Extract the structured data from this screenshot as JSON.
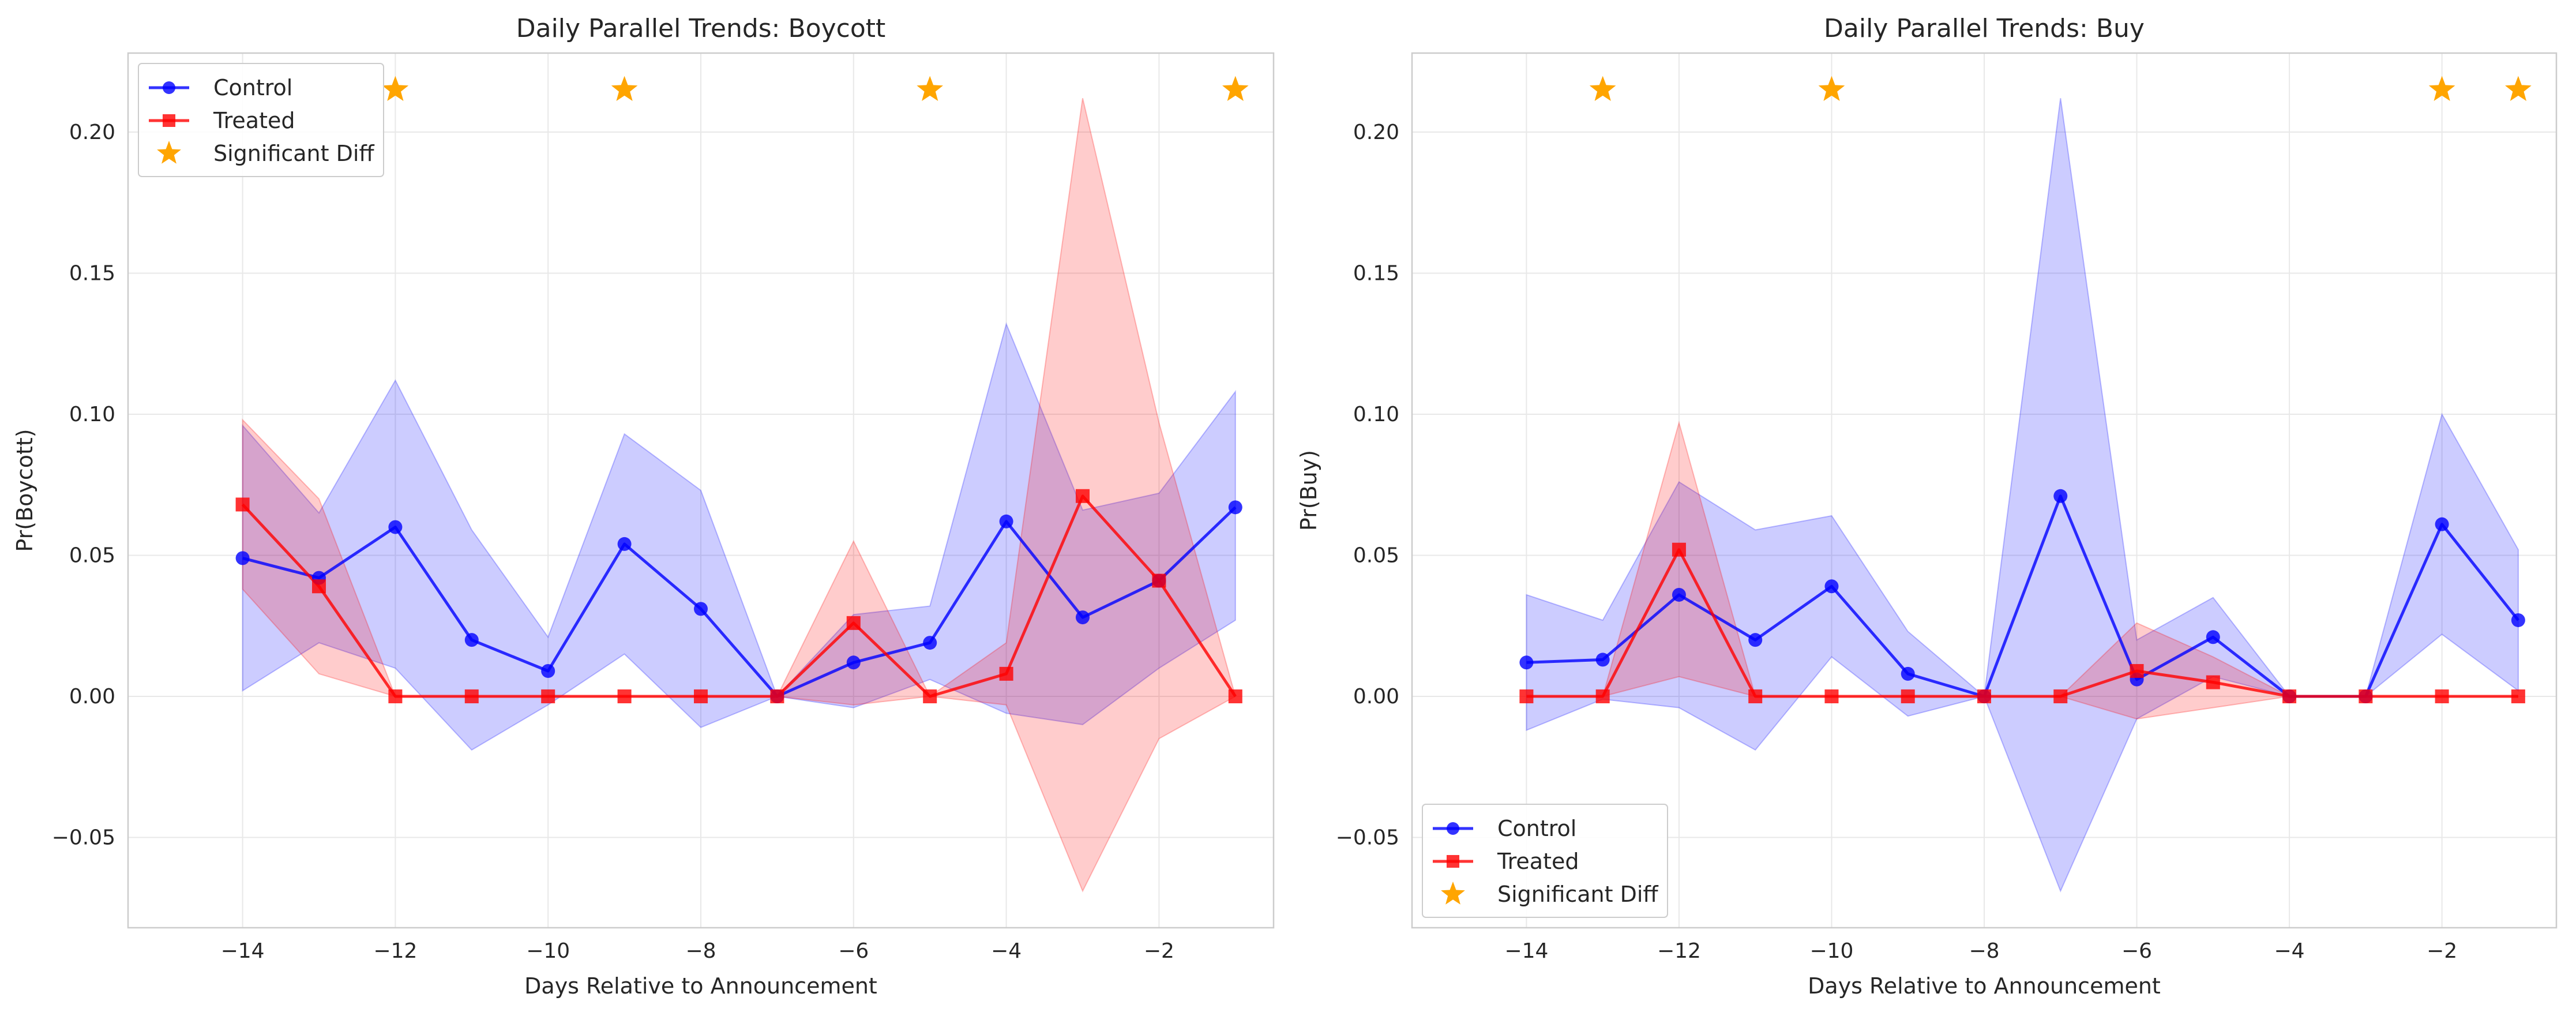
{
  "chart_data": [
    {
      "type": "line",
      "title": "Daily Parallel Trends: Boycott",
      "xlabel": "Days Relative to Announcement",
      "ylabel": "Pr(Boycott)",
      "xlim": [
        -15.5,
        -0.5
      ],
      "ylim": [
        -0.082,
        0.228
      ],
      "xticks": [
        "−14",
        "−12",
        "−10",
        "−8",
        "−6",
        "−4",
        "−2"
      ],
      "xtick_values": [
        -14,
        -12,
        -10,
        -8,
        -6,
        -4,
        -2
      ],
      "yticks": [
        "−0.05",
        "0.00",
        "0.05",
        "0.10",
        "0.15",
        "0.20"
      ],
      "ytick_values": [
        -0.05,
        0,
        0.05,
        0.1,
        0.15,
        0.2
      ],
      "grid": true,
      "legend_position": "top-left",
      "x": [
        -14,
        -13,
        -12,
        -11,
        -10,
        -9,
        -8,
        -7,
        -6,
        -5,
        -4,
        -3,
        -2,
        -1
      ],
      "series": [
        {
          "name": "Control",
          "color": "#0000ff",
          "marker": "circle",
          "values": [
            0.049,
            0.042,
            0.06,
            0.02,
            0.009,
            0.054,
            0.031,
            0.0,
            0.012,
            0.019,
            0.062,
            0.028,
            0.041,
            0.067
          ],
          "ci_lower": [
            0.002,
            0.019,
            0.01,
            -0.019,
            -0.003,
            0.015,
            -0.011,
            0.0,
            -0.004,
            0.006,
            -0.006,
            -0.01,
            0.01,
            0.027
          ],
          "ci_upper": [
            0.096,
            0.065,
            0.112,
            0.059,
            0.021,
            0.093,
            0.073,
            0.0,
            0.029,
            0.032,
            0.132,
            0.066,
            0.072,
            0.108
          ]
        },
        {
          "name": "Treated",
          "color": "#ff0000",
          "marker": "square",
          "values": [
            0.068,
            0.039,
            0.0,
            0.0,
            0.0,
            0.0,
            0.0,
            0.0,
            0.026,
            0.0,
            0.008,
            0.071,
            0.041,
            0.0
          ],
          "ci_lower": [
            0.038,
            0.008,
            0.0,
            0.0,
            0.0,
            0.0,
            0.0,
            0.0,
            -0.003,
            0.0,
            -0.003,
            -0.069,
            -0.015,
            0.0
          ],
          "ci_upper": [
            0.098,
            0.07,
            0.0,
            0.0,
            0.0,
            0.0,
            0.0,
            0.0,
            0.055,
            0.0,
            0.019,
            0.212,
            0.097,
            0.0
          ]
        }
      ],
      "significant": {
        "name": "Significant Diff",
        "color": "#ffa500",
        "x": [
          -12,
          -9,
          -5,
          -1
        ],
        "y": 0.215
      }
    },
    {
      "type": "line",
      "title": "Daily Parallel Trends: Buy",
      "xlabel": "Days Relative to Announcement",
      "ylabel": "Pr(Buy)",
      "xlim": [
        -15.5,
        -0.5
      ],
      "ylim": [
        -0.082,
        0.228
      ],
      "xticks": [
        "−14",
        "−12",
        "−10",
        "−8",
        "−6",
        "−4",
        "−2"
      ],
      "xtick_values": [
        -14,
        -12,
        -10,
        -8,
        -6,
        -4,
        -2
      ],
      "yticks": [
        "−0.05",
        "0.00",
        "0.05",
        "0.10",
        "0.15",
        "0.20"
      ],
      "ytick_values": [
        -0.05,
        0,
        0.05,
        0.1,
        0.15,
        0.2
      ],
      "grid": true,
      "legend_position": "bottom-left",
      "x": [
        -14,
        -13,
        -12,
        -11,
        -10,
        -9,
        -8,
        -7,
        -6,
        -5,
        -4,
        -3,
        -2,
        -1
      ],
      "series": [
        {
          "name": "Control",
          "color": "#0000ff",
          "marker": "circle",
          "values": [
            0.012,
            0.013,
            0.036,
            0.02,
            0.039,
            0.008,
            0.0,
            0.071,
            0.006,
            0.021,
            0.0,
            0.0,
            0.061,
            0.027
          ],
          "ci_lower": [
            -0.012,
            -0.001,
            -0.004,
            -0.019,
            0.014,
            -0.007,
            0.0,
            -0.069,
            -0.008,
            0.007,
            0.0,
            0.0,
            0.022,
            0.002
          ],
          "ci_upper": [
            0.036,
            0.027,
            0.076,
            0.059,
            0.064,
            0.023,
            0.0,
            0.212,
            0.02,
            0.035,
            0.0,
            0.0,
            0.1,
            0.052
          ]
        },
        {
          "name": "Treated",
          "color": "#ff0000",
          "marker": "square",
          "values": [
            0.0,
            0.0,
            0.052,
            0.0,
            0.0,
            0.0,
            0.0,
            0.0,
            0.009,
            0.005,
            0.0,
            0.0,
            0.0,
            0.0
          ],
          "ci_lower": [
            0.0,
            0.0,
            0.007,
            0.0,
            0.0,
            0.0,
            0.0,
            0.0,
            -0.008,
            -0.004,
            0.0,
            0.0,
            0.0,
            0.0
          ],
          "ci_upper": [
            0.0,
            0.0,
            0.097,
            0.0,
            0.0,
            0.0,
            0.0,
            0.0,
            0.026,
            0.014,
            0.0,
            0.0,
            0.0,
            0.0
          ]
        }
      ],
      "significant": {
        "name": "Significant Diff",
        "color": "#ffa500",
        "x": [
          -13,
          -10,
          -2,
          -1
        ],
        "y": 0.215
      }
    }
  ]
}
